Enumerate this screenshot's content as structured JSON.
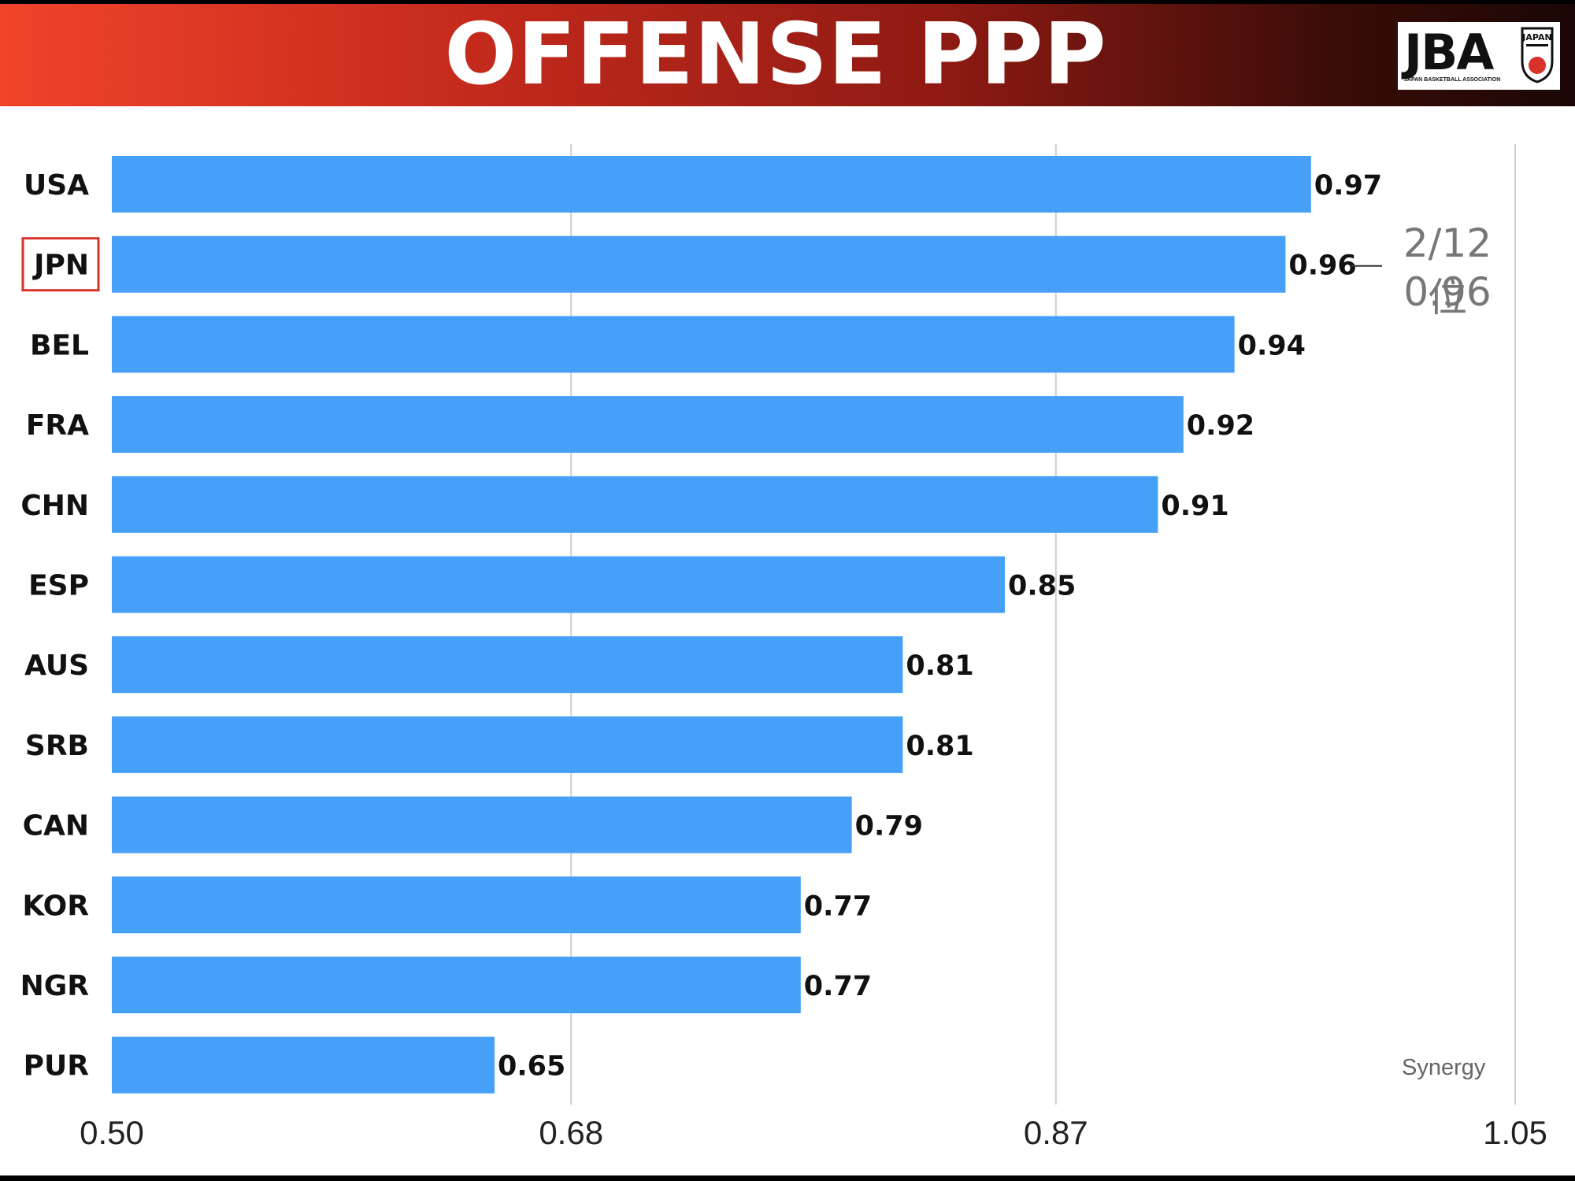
{
  "header": {
    "title": "OFFENSE PPP",
    "logo_text": "JBA",
    "logo_subtext": "JAPAN BASKETBALL ASSOCIATION",
    "logo_badge_text": "JAPAN"
  },
  "annotation": {
    "rank": "2/12位",
    "value": "0.96"
  },
  "source": "Synergy",
  "colors": {
    "bar": "#47a0f8",
    "highlight_box": "#d9322b",
    "grid": "#cfcfcf",
    "header_left": "#f0432a",
    "header_right": "#1a0705"
  },
  "chart_data": {
    "type": "bar",
    "orientation": "horizontal",
    "title": "OFFENSE PPP",
    "categories": [
      "USA",
      "JPN",
      "BEL",
      "FRA",
      "CHN",
      "ESP",
      "AUS",
      "SRB",
      "CAN",
      "KOR",
      "NGR",
      "PUR"
    ],
    "values": [
      0.97,
      0.96,
      0.94,
      0.92,
      0.91,
      0.85,
      0.81,
      0.81,
      0.79,
      0.77,
      0.77,
      0.65
    ],
    "value_labels": [
      "0.97",
      "0.96",
      "0.94",
      "0.92",
      "0.91",
      "0.85",
      "0.81",
      "0.81",
      "0.79",
      "0.77",
      "0.77",
      "0.65"
    ],
    "highlight": "JPN",
    "xlim": [
      0.5,
      1.05
    ],
    "xticks": [
      0.5,
      0.68,
      0.87,
      1.05
    ],
    "xtick_labels": [
      "0.50",
      "0.68",
      "0.87",
      "1.05"
    ],
    "grid": true
  }
}
